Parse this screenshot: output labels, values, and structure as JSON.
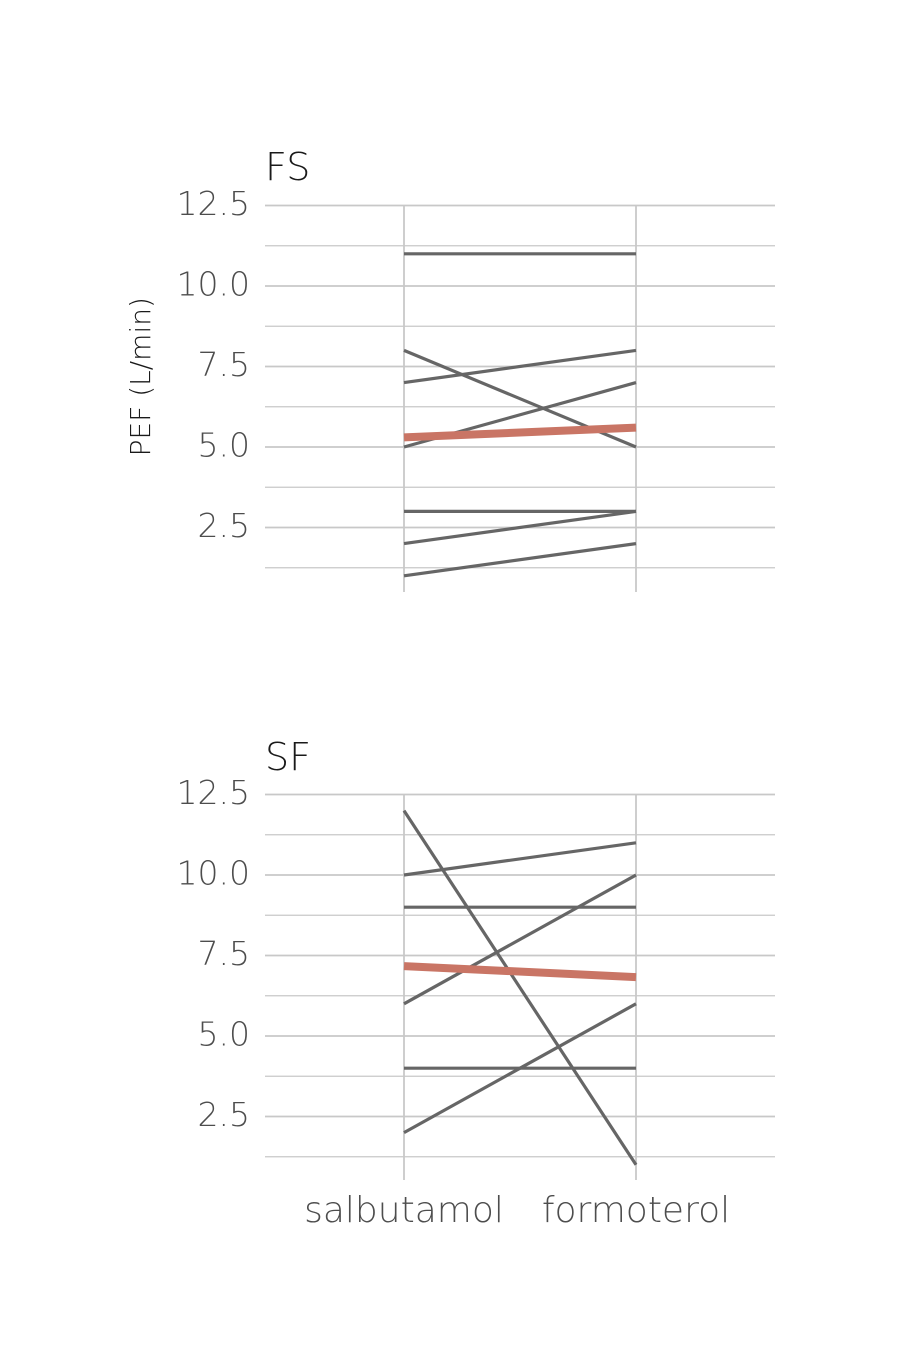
{
  "chart_data": [
    {
      "type": "line",
      "panel": "FS",
      "title": "FS",
      "ylabel": "PEF (L/min)",
      "categories": [
        "salbutamol",
        "formoterol"
      ],
      "ylim": [
        0.9,
        12.5
      ],
      "yticks": [
        "2.5",
        "5.0",
        "7.5",
        "10.0",
        "12.5"
      ],
      "y_tick_values": [
        2.5,
        5.0,
        7.5,
        10.0,
        12.5
      ],
      "series": [
        {
          "values": [
            11,
            11
          ]
        },
        {
          "values": [
            8,
            5
          ]
        },
        {
          "values": [
            7,
            8
          ]
        },
        {
          "values": [
            5,
            7
          ]
        },
        {
          "values": [
            3,
            3
          ]
        },
        {
          "values": [
            2,
            3
          ]
        },
        {
          "values": [
            1,
            2
          ]
        }
      ],
      "mean_series": {
        "values": [
          5.3,
          5.6
        ]
      }
    },
    {
      "type": "line",
      "panel": "SF",
      "title": "SF",
      "ylabel": "",
      "categories": [
        "salbutamol",
        "formoterol"
      ],
      "ylim": [
        0.9,
        12.5
      ],
      "yticks": [
        "2.5",
        "5.0",
        "7.5",
        "10.0",
        "12.5"
      ],
      "y_tick_values": [
        2.5,
        5.0,
        7.5,
        10.0,
        12.5
      ],
      "series": [
        {
          "values": [
            12,
            1
          ]
        },
        {
          "values": [
            10,
            11
          ]
        },
        {
          "values": [
            9,
            9
          ]
        },
        {
          "values": [
            6,
            10
          ]
        },
        {
          "values": [
            4,
            4
          ]
        },
        {
          "values": [
            2,
            6
          ]
        }
      ],
      "mean_series": {
        "values": [
          7.17,
          6.83
        ]
      }
    }
  ],
  "colors": {
    "grid": "#c8c8c8",
    "subject_line": "#666666",
    "mean_line": "#c97565"
  }
}
